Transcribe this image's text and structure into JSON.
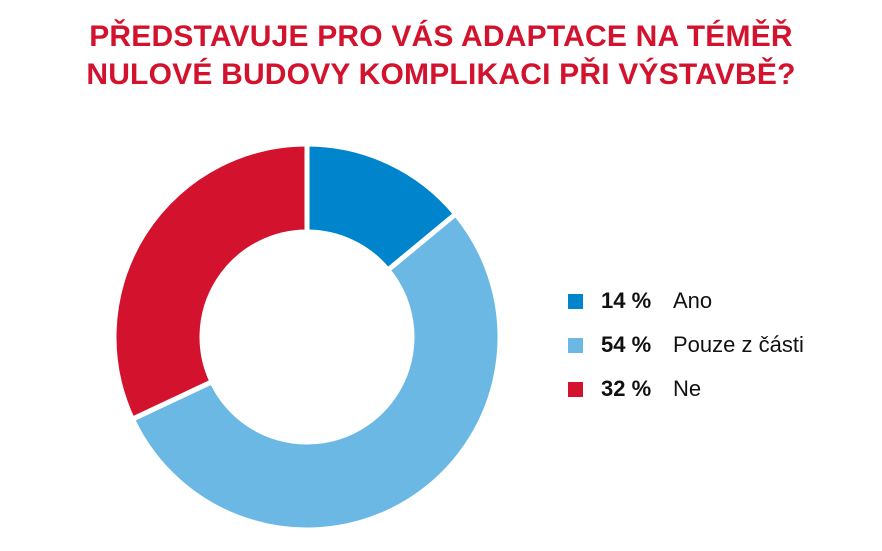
{
  "title_lines": [
    "PŘEDSTAVUJE PRO VÁS ADAPTACE NA TÉMĚŘ",
    "NULOVÉ BUDOVY KOMPLIKACI PŘI VÝSTAVBĚ?"
  ],
  "chart_data": {
    "type": "pie",
    "title": "PŘEDSTAVUJE PRO VÁS ADAPTACE NA TÉMĚŘ NULOVÉ BUDOVY KOMPLIKACI PŘI VÝSTAVBĚ?",
    "donut": true,
    "legend_position": "right",
    "slices": [
      {
        "label": "Ano",
        "value": 14,
        "value_label": "14 %",
        "color": "#0085cc"
      },
      {
        "label": "Pouze z části",
        "value": 54,
        "value_label": "54 %",
        "color": "#6bb8e5"
      },
      {
        "label": "Ne",
        "value": 32,
        "value_label": "32 %",
        "color": "#d3122e"
      }
    ]
  },
  "legend": [
    {
      "value_label": "14 %",
      "label": "Ano",
      "color": "#0085cc"
    },
    {
      "value_label": "54 %",
      "label": "Pouze z části",
      "color": "#6bb8e5"
    },
    {
      "value_label": "32 %",
      "label": "Ne",
      "color": "#d3122e"
    }
  ]
}
